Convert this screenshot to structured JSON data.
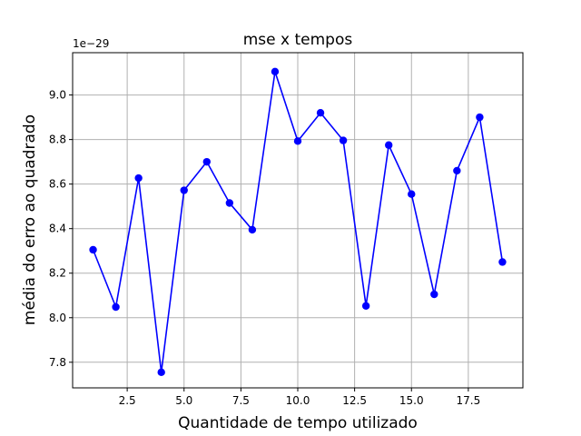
{
  "chart_data": {
    "type": "line",
    "title": "mse x tempos",
    "xlabel": "Quantidade de tempo utilizado",
    "ylabel": "média do erro ao quadrado",
    "y_offset_label": "1e−29",
    "xlim": [
      0.1,
      19.9
    ],
    "ylim": [
      7.685,
      9.19
    ],
    "x_ticks": [
      2.5,
      5.0,
      7.5,
      10.0,
      12.5,
      15.0,
      17.5
    ],
    "x_tick_labels": [
      "2.5",
      "5.0",
      "7.5",
      "10.0",
      "12.5",
      "15.0",
      "17.5"
    ],
    "y_ticks": [
      7.8,
      8.0,
      8.2,
      8.4,
      8.6,
      8.8,
      9.0
    ],
    "y_tick_labels": [
      "7.8",
      "8.0",
      "8.2",
      "8.4",
      "8.6",
      "8.8",
      "9.0"
    ],
    "grid": true,
    "series": [
      {
        "color": "#0000ff",
        "marker": "circle",
        "x": [
          1,
          2,
          3,
          4,
          5,
          6,
          7,
          8,
          9,
          10,
          11,
          12,
          13,
          14,
          15,
          16,
          17,
          18,
          19
        ],
        "y": [
          8.305,
          8.048,
          8.627,
          7.755,
          8.572,
          8.7,
          8.515,
          8.395,
          9.105,
          8.793,
          8.92,
          8.796,
          8.053,
          8.775,
          8.555,
          8.105,
          8.66,
          8.9,
          8.25
        ]
      }
    ]
  }
}
